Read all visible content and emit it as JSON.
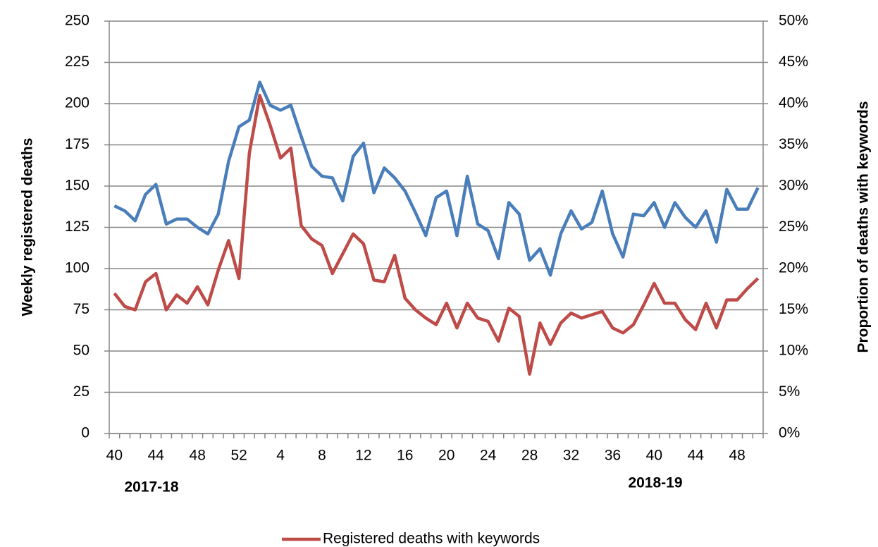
{
  "chart_data": {
    "type": "line",
    "y_label": "Weekly registered deaths",
    "y2_label": "Proportion of deaths with keywords",
    "categories": [
      "40",
      null,
      null,
      null,
      "44",
      null,
      null,
      null,
      "48",
      null,
      null,
      null,
      "52",
      null,
      null,
      null,
      "4",
      null,
      null,
      null,
      "8",
      null,
      null,
      null,
      "12",
      null,
      null,
      null,
      "16",
      null,
      null,
      null,
      "20",
      null,
      null,
      null,
      "24",
      null,
      null,
      null,
      "28",
      null,
      null,
      null,
      "32",
      null,
      null,
      null,
      "36",
      null,
      null,
      null,
      "40",
      null,
      null,
      null,
      "44",
      null,
      null,
      null,
      "48",
      null,
      null
    ],
    "group_labels": [
      "2017-18",
      "2018-19"
    ],
    "series": [
      {
        "color": "#4a7ebb",
        "axis": "y2",
        "values": [
          27.6,
          27.0,
          25.8,
          29.0,
          30.2,
          25.4,
          26.0,
          26.0,
          25.0,
          24.2,
          26.6,
          33.0,
          37.2,
          38.0,
          42.6,
          39.8,
          39.2,
          39.8,
          36.0,
          32.4,
          31.2,
          31.0,
          28.2,
          33.6,
          35.2,
          29.2,
          32.2,
          31.0,
          29.4,
          26.8,
          24.0,
          28.6,
          29.4,
          24.0,
          31.2,
          25.4,
          24.6,
          21.2,
          28.0,
          26.6,
          21.0,
          22.4,
          19.2,
          24.2,
          27.0,
          24.8,
          25.6,
          29.4,
          24.2,
          21.4,
          26.6,
          26.4,
          28.0,
          25.0,
          28.0,
          26.2,
          25.0,
          27.0,
          23.2,
          29.6,
          27.2,
          27.2,
          29.8
        ]
      },
      {
        "name": "Registered deaths with keywords",
        "color": "#be4b48",
        "values": [
          85,
          77,
          75,
          92,
          97,
          75,
          84,
          79,
          89,
          78,
          99,
          117,
          94,
          170,
          205,
          187,
          167,
          173,
          126,
          118,
          114,
          97,
          109,
          121,
          115,
          93,
          92,
          108,
          82,
          75,
          70,
          66,
          79,
          64,
          79,
          70,
          68,
          56,
          76,
          71,
          36,
          67,
          54,
          67,
          73,
          70,
          72,
          74,
          64,
          61,
          66,
          78,
          91,
          79,
          79,
          69,
          63,
          79,
          64,
          81,
          81,
          88,
          94
        ]
      }
    ],
    "ylim": [
      0,
      250
    ],
    "yticks": [
      0,
      25,
      50,
      75,
      100,
      125,
      150,
      175,
      200,
      225,
      250
    ],
    "y2lim": [
      0,
      50
    ],
    "y2ticks": [
      {
        "value": 0,
        "label": "0%"
      },
      {
        "value": 5,
        "label": "5%"
      },
      {
        "value": 10,
        "label": "10%"
      },
      {
        "value": 15,
        "label": "15%"
      },
      {
        "value": 20,
        "label": "20%"
      },
      {
        "value": 25,
        "label": "25%"
      },
      {
        "value": 30,
        "label": "30%"
      },
      {
        "value": 35,
        "label": "35%"
      },
      {
        "value": 40,
        "label": "40%"
      },
      {
        "value": 45,
        "label": "45%"
      },
      {
        "value": 50,
        "label": "50%"
      }
    ],
    "grid": true
  }
}
